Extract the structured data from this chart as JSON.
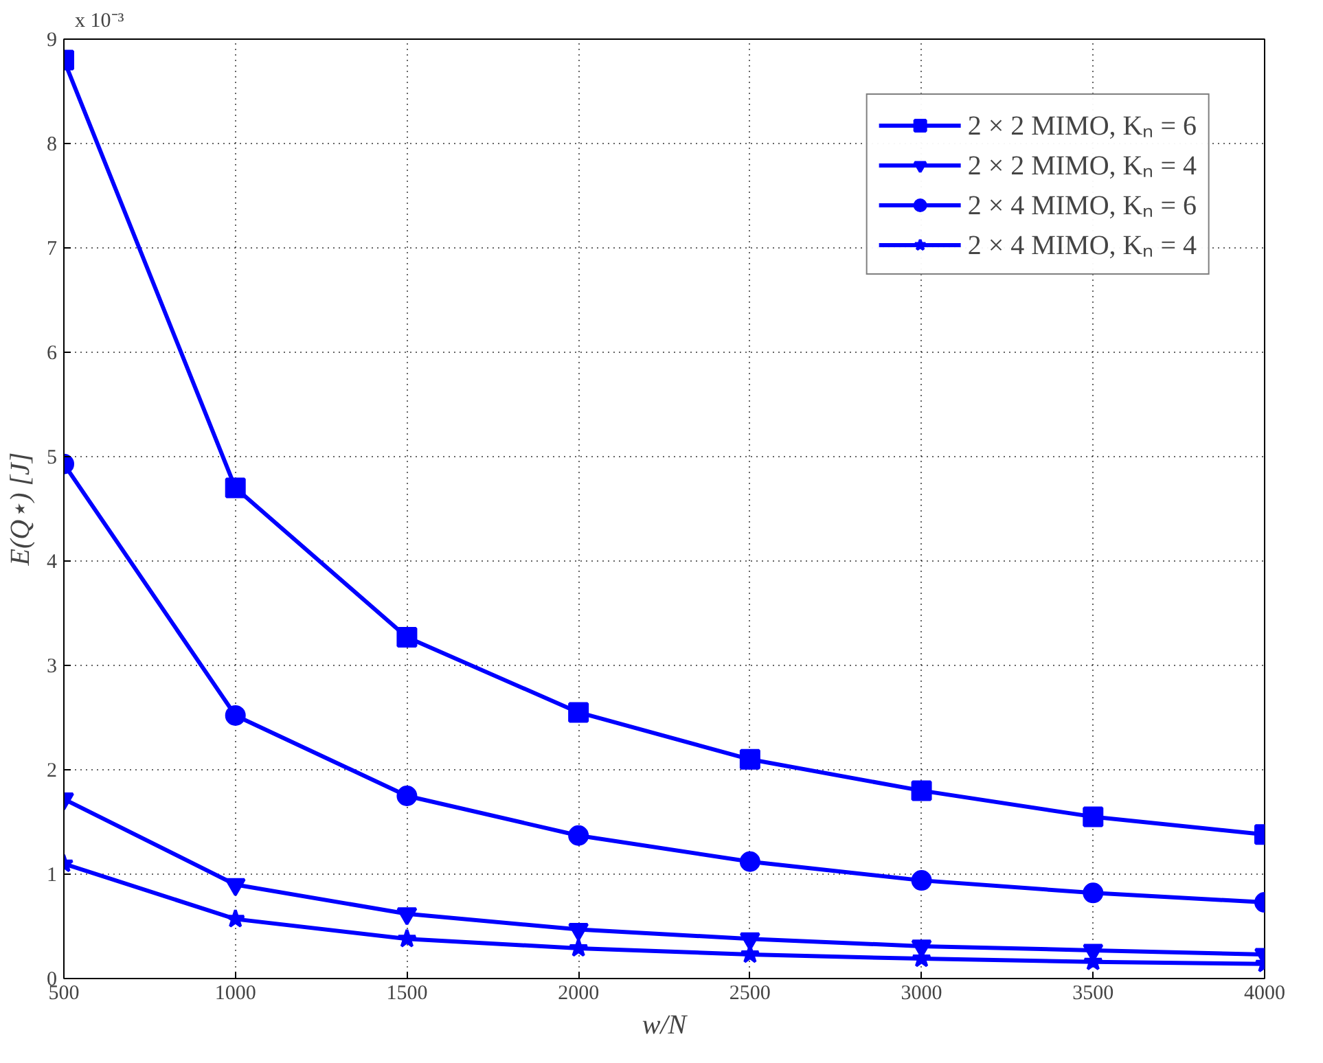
{
  "chart_data": {
    "type": "line",
    "xlabel": "w/N",
    "ylabel": "E(Q⋆) [J]",
    "annotations": [
      "x 10⁻³"
    ],
    "x": [
      500,
      1000,
      1500,
      2000,
      2500,
      3000,
      3500,
      4000
    ],
    "xlim": [
      500,
      4000
    ],
    "xticks": [
      500,
      1000,
      1500,
      2000,
      2500,
      3000,
      3500,
      4000
    ],
    "ylim": [
      0,
      9
    ],
    "yticks": [
      0,
      1,
      2,
      3,
      4,
      5,
      6,
      7,
      8,
      9
    ],
    "grid": true,
    "legend": "top right",
    "line_style": "solid",
    "series": [
      {
        "name": "2 × 2 MIMO, Kₙ = 6",
        "color": "#0000ff",
        "marker": "square",
        "values": [
          8.8,
          4.7,
          3.27,
          2.55,
          2.1,
          1.8,
          1.55,
          1.38
        ]
      },
      {
        "name": "2 × 2 MIMO, Kₙ = 4",
        "color": "#0000ff",
        "marker": "triangle",
        "values": [
          1.72,
          0.9,
          0.62,
          0.47,
          0.38,
          0.31,
          0.27,
          0.23
        ]
      },
      {
        "name": "2 × 4 MIMO, Kₙ = 6",
        "color": "#0000ff",
        "marker": "circle",
        "values": [
          4.93,
          2.52,
          1.75,
          1.37,
          1.12,
          0.94,
          0.82,
          0.73
        ]
      },
      {
        "name": "2 × 4 MIMO, Kₙ = 4",
        "color": "#0000ff",
        "marker": "star",
        "values": [
          1.1,
          0.57,
          0.38,
          0.29,
          0.23,
          0.19,
          0.16,
          0.14
        ]
      }
    ]
  }
}
